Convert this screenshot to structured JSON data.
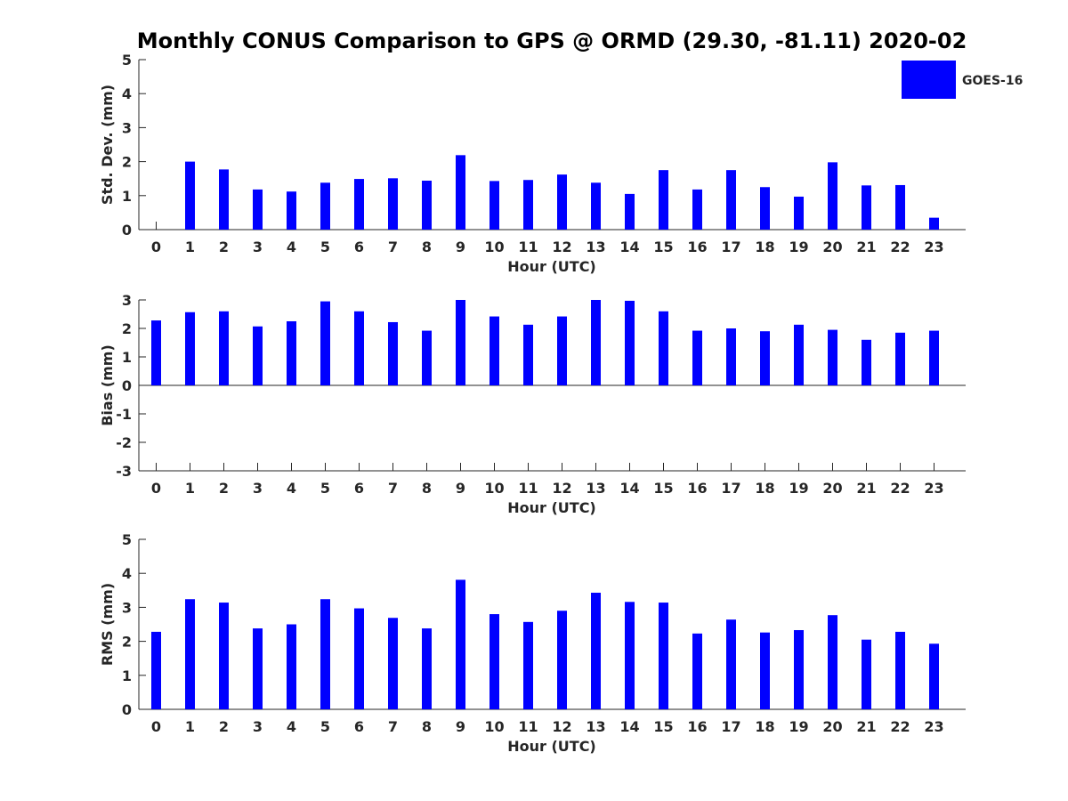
{
  "title": "Monthly CONUS Comparison to GPS @ ORMD (29.30, -81.11) 2020-02",
  "legend": {
    "label": "GOES-16",
    "color": "#0000ff",
    "placement": "top-right"
  },
  "chart_data": [
    {
      "type": "bar",
      "title": "Monthly CONUS Comparison to GPS @ ORMD (29.30, -81.11) 2020-02",
      "xlabel": "Hour (UTC)",
      "ylabel": "Std. Dev. (mm)",
      "ylim": [
        0,
        5
      ],
      "yticks": [
        0,
        1,
        2,
        3,
        4,
        5
      ],
      "categories": [
        "0",
        "1",
        "2",
        "3",
        "4",
        "5",
        "6",
        "7",
        "8",
        "9",
        "10",
        "11",
        "12",
        "13",
        "14",
        "15",
        "16",
        "17",
        "18",
        "19",
        "20",
        "21",
        "22",
        "23"
      ],
      "series": [
        {
          "name": "GOES-16",
          "color": "#0000ff",
          "values": [
            0,
            2.0,
            1.77,
            1.18,
            1.12,
            1.38,
            1.49,
            1.51,
            1.44,
            2.19,
            1.43,
            1.46,
            1.62,
            1.38,
            1.05,
            1.75,
            1.18,
            1.75,
            1.25,
            0.97,
            1.98,
            1.3,
            1.31,
            0.35
          ]
        }
      ]
    },
    {
      "type": "bar",
      "title": "",
      "xlabel": "Hour (UTC)",
      "ylabel": "Bias (mm)",
      "ylim": [
        -3,
        3
      ],
      "yticks": [
        -3,
        -2,
        -1,
        0,
        1,
        2,
        3
      ],
      "categories": [
        "0",
        "1",
        "2",
        "3",
        "4",
        "5",
        "6",
        "7",
        "8",
        "9",
        "10",
        "11",
        "12",
        "13",
        "14",
        "15",
        "16",
        "17",
        "18",
        "19",
        "20",
        "21",
        "22",
        "23"
      ],
      "series": [
        {
          "name": "GOES-16",
          "color": "#0000ff",
          "values": [
            2.28,
            2.57,
            2.6,
            2.07,
            2.25,
            2.95,
            2.6,
            2.22,
            1.92,
            3.0,
            2.42,
            2.13,
            2.42,
            3.0,
            2.97,
            2.6,
            1.92,
            2.0,
            1.9,
            2.13,
            1.95,
            1.6,
            1.85,
            1.92
          ]
        }
      ]
    },
    {
      "type": "bar",
      "title": "",
      "xlabel": "Hour (UTC)",
      "ylabel": "RMS (mm)",
      "ylim": [
        0,
        5
      ],
      "yticks": [
        0,
        1,
        2,
        3,
        4,
        5
      ],
      "categories": [
        "0",
        "1",
        "2",
        "3",
        "4",
        "5",
        "6",
        "7",
        "8",
        "9",
        "10",
        "11",
        "12",
        "13",
        "14",
        "15",
        "16",
        "17",
        "18",
        "19",
        "20",
        "21",
        "22",
        "23"
      ],
      "series": [
        {
          "name": "GOES-16",
          "color": "#0000ff",
          "values": [
            2.28,
            3.24,
            3.14,
            2.38,
            2.5,
            3.24,
            2.97,
            2.69,
            2.38,
            3.81,
            2.8,
            2.57,
            2.9,
            3.43,
            3.16,
            3.14,
            2.23,
            2.64,
            2.26,
            2.33,
            2.77,
            2.05,
            2.28,
            1.93
          ]
        }
      ]
    }
  ]
}
